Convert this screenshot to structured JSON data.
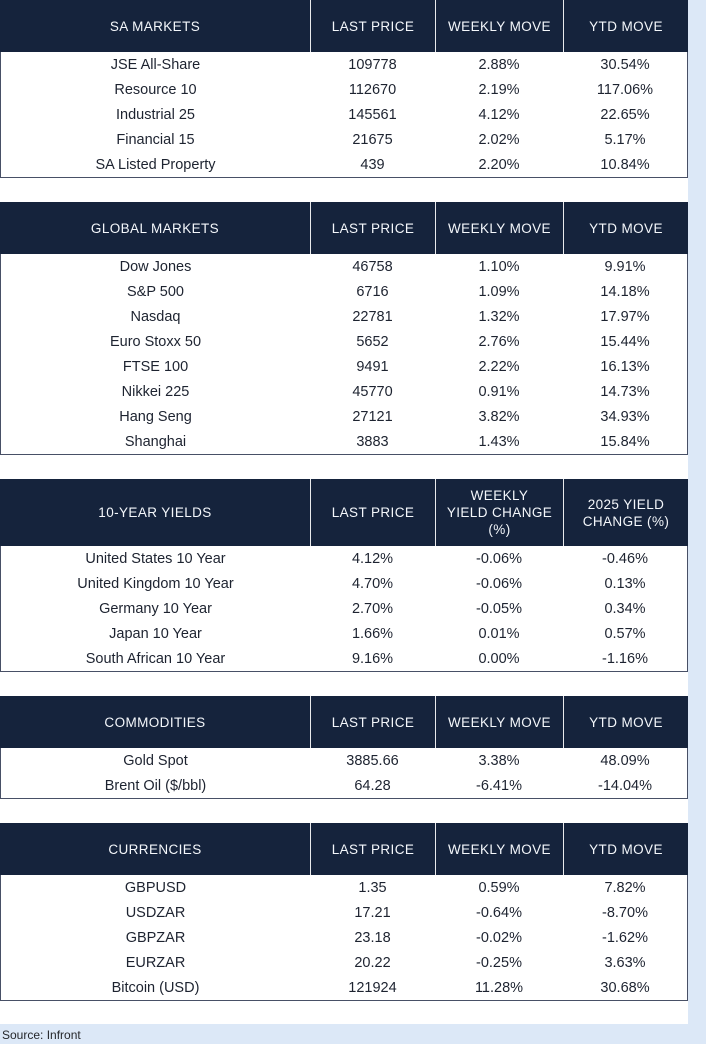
{
  "theme": {
    "page_bg": "#dce8f7",
    "header_bg": "#15233c",
    "header_text": "#f4f7fb",
    "body_text": "#1d2330",
    "border_color": "#485066"
  },
  "sections": [
    {
      "id": "sa-markets",
      "columns": [
        "SA MARKETS",
        "LAST PRICE",
        "WEEKLY MOVE",
        "YTD MOVE"
      ],
      "rows": [
        [
          "JSE All-Share",
          "109778",
          "2.88%",
          "30.54%"
        ],
        [
          "Resource 10",
          "112670",
          "2.19%",
          "117.06%"
        ],
        [
          "Industrial 25",
          "145561",
          "4.12%",
          "22.65%"
        ],
        [
          "Financial 15",
          "21675",
          "2.02%",
          "5.17%"
        ],
        [
          "SA Listed Property",
          "439",
          "2.20%",
          "10.84%"
        ]
      ]
    },
    {
      "id": "global-markets",
      "columns": [
        "GLOBAL MARKETS",
        "LAST PRICE",
        "WEEKLY MOVE",
        "YTD MOVE"
      ],
      "rows": [
        [
          "Dow Jones",
          "46758",
          "1.10%",
          "9.91%"
        ],
        [
          "S&P 500",
          "6716",
          "1.09%",
          "14.18%"
        ],
        [
          "Nasdaq",
          "22781",
          "1.32%",
          "17.97%"
        ],
        [
          "Euro Stoxx 50",
          "5652",
          "2.76%",
          "15.44%"
        ],
        [
          "FTSE 100",
          "9491",
          "2.22%",
          "16.13%"
        ],
        [
          "Nikkei 225",
          "45770",
          "0.91%",
          "14.73%"
        ],
        [
          "Hang Seng",
          "27121",
          "3.82%",
          "34.93%"
        ],
        [
          "Shanghai",
          "3883",
          "1.43%",
          "15.84%"
        ]
      ]
    },
    {
      "id": "ten-year-yields",
      "columns": [
        "10-YEAR YIELDS",
        "LAST PRICE",
        "WEEKLY\nYIELD CHANGE\n(%)",
        "2025 YIELD\nCHANGE (%)"
      ],
      "rows": [
        [
          "United States 10 Year",
          "4.12%",
          "-0.06%",
          "-0.46%"
        ],
        [
          "United Kingdom 10 Year",
          "4.70%",
          "-0.06%",
          "0.13%"
        ],
        [
          "Germany 10 Year",
          "2.70%",
          "-0.05%",
          "0.34%"
        ],
        [
          "Japan 10 Year",
          "1.66%",
          "0.01%",
          "0.57%"
        ],
        [
          "South African 10 Year",
          "9.16%",
          "0.00%",
          "-1.16%"
        ]
      ]
    },
    {
      "id": "commodities",
      "columns": [
        "COMMODITIES",
        "LAST PRICE",
        "WEEKLY MOVE",
        "YTD MOVE"
      ],
      "rows": [
        [
          "Gold Spot",
          "3885.66",
          "3.38%",
          "48.09%"
        ],
        [
          "Brent Oil ($/bbl)",
          "64.28",
          "-6.41%",
          "-14.04%"
        ]
      ]
    },
    {
      "id": "currencies",
      "columns": [
        "CURRENCIES",
        "LAST PRICE",
        "WEEKLY MOVE",
        "YTD MOVE"
      ],
      "rows": [
        [
          "GBPUSD",
          "1.35",
          "0.59%",
          "7.82%"
        ],
        [
          "USDZAR",
          "17.21",
          "-0.64%",
          "-8.70%"
        ],
        [
          "GBPZAR",
          "23.18",
          "-0.02%",
          "-1.62%"
        ],
        [
          "EURZAR",
          "20.22",
          "-0.25%",
          "3.63%"
        ],
        [
          "Bitcoin (USD)",
          "121924",
          "11.28%",
          "30.68%"
        ]
      ]
    }
  ],
  "footer": {
    "source": "Source: Infront"
  }
}
